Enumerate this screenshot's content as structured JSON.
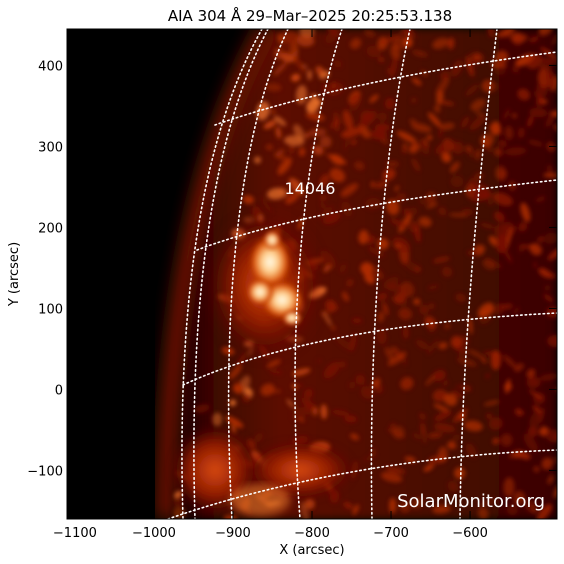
{
  "plot": {
    "title": "AIA 304 Å 29–Mar–2025  20:25:53.138",
    "xlabel": "X (arcsec)",
    "ylabel": "Y (arcsec)",
    "xlim": [
      -1110,
      -490
    ],
    "ylim": [
      -160,
      445
    ],
    "xticks": [
      -1100,
      -1000,
      -900,
      -800,
      -700,
      -600
    ],
    "yticks": [
      -100,
      0,
      100,
      200,
      300,
      400
    ],
    "xtick_labels": [
      "−1100",
      "−1000",
      "−900",
      "−800",
      "−700",
      "−600"
    ],
    "ytick_labels": [
      "−100",
      "0",
      "100",
      "200",
      "300",
      "400"
    ]
  },
  "overlay": {
    "active_region": "14046",
    "watermark": "SolarMonitor.org",
    "grid_style": "dotted white heliographic grid",
    "colormap": "sdo aia 304 (black-red-orange-white)"
  },
  "colors": {
    "background": "#000000",
    "frame_bg": "#ffffff",
    "grid": "#ffffff",
    "plasma_dark": "#5a0a00",
    "plasma_mid": "#b02a00",
    "plasma_bright": "#f07a20",
    "plasma_hot": "#ffe8c0"
  }
}
